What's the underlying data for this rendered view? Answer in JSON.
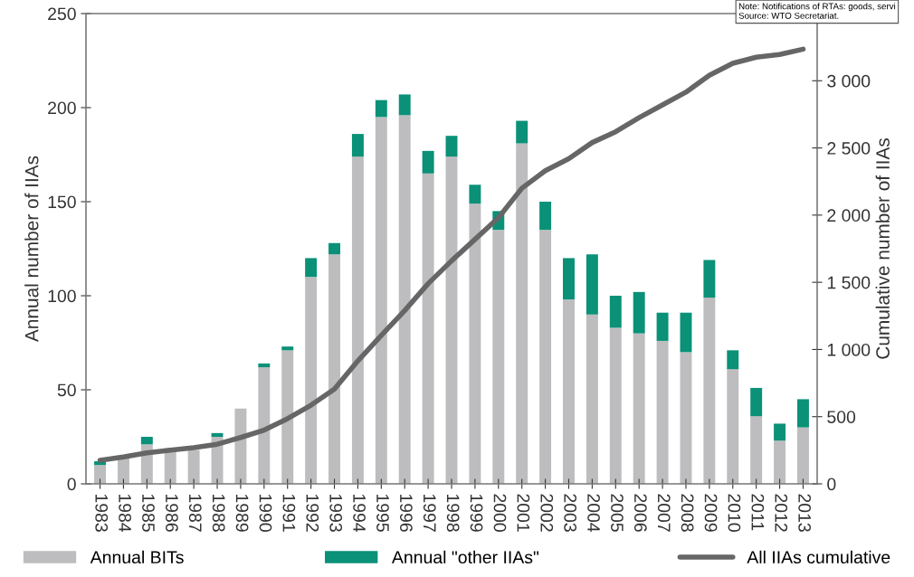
{
  "chart_data": {
    "type": "bar",
    "stacked": true,
    "ylabel": "Annual number of IIAs",
    "y2label": "Cumulative number of IIAs",
    "categories": [
      "1983",
      "1984",
      "1985",
      "1986",
      "1987",
      "1988",
      "1989",
      "1990",
      "1991",
      "1992",
      "1993",
      "1994",
      "1995",
      "1996",
      "1997",
      "1998",
      "1999",
      "2000",
      "2001",
      "2002",
      "2003",
      "2004",
      "2005",
      "2006",
      "2007",
      "2008",
      "2009",
      "2010",
      "2011",
      "2012",
      "2013"
    ],
    "series": [
      {
        "name": "Annual BITs",
        "color": "#bdbdbf",
        "values": [
          10,
          14,
          21,
          19,
          18,
          25,
          40,
          62,
          71,
          110,
          122,
          174,
          195,
          196,
          165,
          174,
          149,
          135,
          181,
          135,
          98,
          90,
          83,
          80,
          76,
          70,
          99,
          61,
          36,
          23,
          30
        ]
      },
      {
        "name": "Annual \"other IIAs\"",
        "color": "#0a9178",
        "values": [
          2,
          0,
          4,
          0,
          0,
          2,
          0,
          2,
          2,
          10,
          6,
          12,
          9,
          11,
          12,
          11,
          10,
          10,
          12,
          15,
          22,
          32,
          17,
          22,
          15,
          21,
          20,
          10,
          15,
          9,
          15
        ]
      },
      {
        "name": "All IIAs cumulative",
        "type": "line",
        "axis": "y2",
        "color": "#666666",
        "values": [
          175,
          200,
          230,
          250,
          270,
          295,
          345,
          400,
          485,
          585,
          705,
          915,
          1105,
          1290,
          1490,
          1660,
          1820,
          1980,
          2200,
          2330,
          2420,
          2540,
          2620,
          2725,
          2820,
          2915,
          3040,
          3130,
          3175,
          3195,
          3235
        ]
      }
    ],
    "ylim": [
      0,
      250
    ],
    "yticks": [
      0,
      50,
      100,
      150,
      200,
      250
    ],
    "y2lim": [
      0,
      3500
    ],
    "y2ticks": [
      {
        "value": 0,
        "label": "0"
      },
      {
        "value": 500,
        "label": "500"
      },
      {
        "value": 1000,
        "label": "1 000"
      },
      {
        "value": 1500,
        "label": "1 500"
      },
      {
        "value": 2000,
        "label": "2 000"
      },
      {
        "value": 2500,
        "label": "2 500"
      },
      {
        "value": 3000,
        "label": "3 000"
      }
    ],
    "legend": "bottom",
    "grid": false,
    "annotations": [
      "Note: Notifications of RTAs: goods, servi",
      "Source: WTO Secretariat."
    ]
  }
}
